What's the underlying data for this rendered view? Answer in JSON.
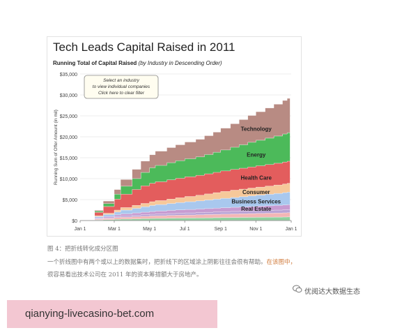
{
  "chart_data": {
    "type": "area",
    "title": "Tech Leads Capital Raised in 2011",
    "subtitle_bold": "Running Total of Capital Raised",
    "subtitle_italic": "(by Industry in Descending Order)",
    "ylabel": "Running Sum of Offer Amount (in mil)",
    "xlabel": "",
    "ylim": [
      0,
      35000
    ],
    "y_ticks": [
      "$0",
      "$5,000",
      "$10,000",
      "$15,000",
      "$20,000",
      "$25,000",
      "$30,000",
      "$35,000"
    ],
    "x_ticks": [
      "Jan 1",
      "Mar 1",
      "May 1",
      "Jul 1",
      "Sep 1",
      "Nov 1",
      "Jan 1"
    ],
    "x_tick_days": [
      0,
      59,
      120,
      181,
      243,
      304,
      365
    ],
    "stacking": "stacked, cumulative over 2011",
    "filter_box": [
      "Select an industry",
      "to view individual companies",
      "Click here to clear filter"
    ],
    "x": [
      0,
      12,
      22,
      25,
      40,
      59,
      70,
      90,
      105,
      120,
      130,
      150,
      165,
      181,
      200,
      215,
      230,
      243,
      260,
      275,
      290,
      304,
      320,
      335,
      350,
      358,
      363
    ],
    "series": [
      {
        "name": "",
        "color": "#8fd19e",
        "values": [
          0,
          0,
          0,
          150,
          200,
          300,
          350,
          400,
          450,
          500,
          520,
          560,
          580,
          600,
          620,
          650,
          680,
          700,
          720,
          740,
          760,
          780,
          800,
          820,
          840,
          860,
          880
        ]
      },
      {
        "name": "",
        "color": "#f4b6b6",
        "values": [
          0,
          0,
          0,
          200,
          300,
          400,
          450,
          520,
          560,
          600,
          630,
          660,
          690,
          720,
          750,
          780,
          800,
          830,
          860,
          880,
          900,
          920,
          950,
          980,
          1000,
          1020,
          1050
        ]
      },
      {
        "name": "",
        "color": "#b9a3d6",
        "values": [
          0,
          0,
          0,
          100,
          150,
          250,
          300,
          350,
          380,
          400,
          420,
          450,
          470,
          500,
          520,
          540,
          560,
          580,
          600,
          620,
          640,
          660,
          680,
          700,
          720,
          730,
          750
        ]
      },
      {
        "name": "Real Estate",
        "color": "#c79bd1",
        "values": [
          0,
          0,
          0,
          200,
          300,
          400,
          500,
          550,
          600,
          650,
          700,
          750,
          800,
          830,
          860,
          890,
          920,
          950,
          980,
          1010,
          1040,
          1070,
          1100,
          1130,
          1160,
          1180,
          1200
        ]
      },
      {
        "name": "Business Services",
        "color": "#a9c8ee",
        "values": [
          0,
          0,
          0,
          300,
          500,
          700,
          900,
          1100,
          1300,
          1450,
          1550,
          1650,
          1750,
          1850,
          1950,
          2050,
          2150,
          2250,
          2350,
          2450,
          2550,
          2650,
          2750,
          2850,
          2950,
          3000,
          3050
        ]
      },
      {
        "name": "Consumer",
        "color": "#f6c89a",
        "values": [
          0,
          0,
          0,
          200,
          300,
          450,
          600,
          700,
          800,
          900,
          950,
          1050,
          1150,
          1250,
          1350,
          1450,
          1550,
          1650,
          1750,
          1800,
          1850,
          1900,
          1950,
          2000,
          2050,
          2100,
          2150
        ]
      },
      {
        "name": "Health Care",
        "color": "#e35d5d",
        "values": [
          0,
          0,
          0,
          800,
          1600,
          2600,
          3200,
          3800,
          4200,
          4400,
          4500,
          4600,
          4650,
          4700,
          4750,
          4800,
          4850,
          4900,
          4950,
          5000,
          5050,
          5100,
          5150,
          5200,
          5250,
          5280,
          5300
        ]
      },
      {
        "name": "Energy",
        "color": "#4cba5a",
        "values": [
          0,
          0,
          0,
          300,
          700,
          1200,
          1900,
          2600,
          3200,
          3700,
          3900,
          4100,
          4200,
          4300,
          4400,
          4600,
          4800,
          5000,
          5300,
          5600,
          5900,
          6100,
          6300,
          6500,
          6700,
          6800,
          6900
        ]
      },
      {
        "name": "Technology",
        "color": "#b88b83",
        "values": [
          0,
          0,
          0,
          200,
          600,
          1100,
          1600,
          2200,
          2700,
          3100,
          3400,
          3600,
          3800,
          4000,
          4200,
          4500,
          4800,
          5200,
          5600,
          6000,
          6400,
          6800,
          7200,
          7600,
          8000,
          8200,
          8400
        ]
      }
    ],
    "grid": true,
    "legend": "inline labels on areas"
  },
  "caption": {
    "line1": "图 4：把折线转化成分区图",
    "line2_plain": "一个折线图中有两个或以上的数据集时，把折线下的区域涂上阴影往往会很有帮助。",
    "line2_highlight": "在该图中，",
    "line3": "很容易看出技术公司在 2011 年的资本筹措额大于房地产。"
  },
  "watermark": {
    "text": "优阅达大数据生态",
    "icon": "wechat-icon"
  },
  "banner": {
    "text": "qianying-livecasino-bet.com",
    "color": "#f3c7d2"
  }
}
